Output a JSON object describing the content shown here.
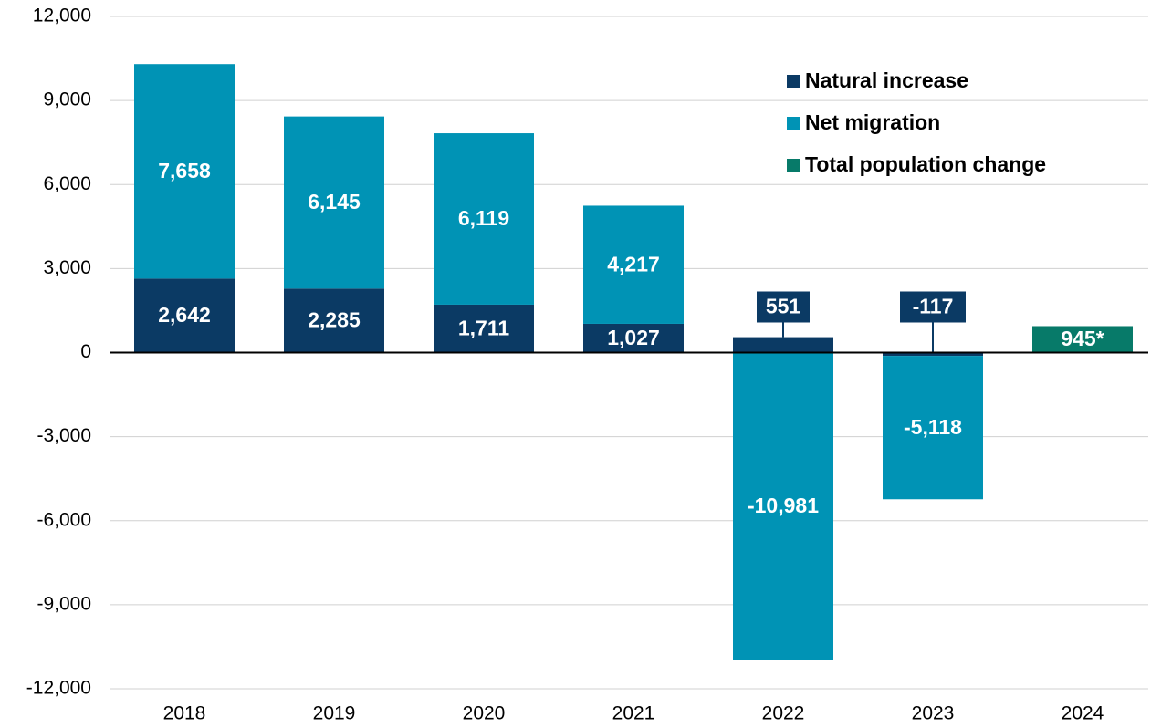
{
  "chart_data": {
    "type": "bar",
    "stacked": true,
    "categories": [
      "2018",
      "2019",
      "2020",
      "2021",
      "2022",
      "2023",
      "2024"
    ],
    "series": [
      {
        "name": "Natural increase",
        "color": "#0b3a64",
        "values": [
          2642,
          2285,
          1711,
          1027,
          551,
          -117,
          null
        ],
        "value_labels": [
          "2,642",
          "2,285",
          "1,711",
          "1,027",
          "551",
          "-117",
          null
        ]
      },
      {
        "name": "Net migration",
        "color": "#0093b5",
        "values": [
          7658,
          6145,
          6119,
          4217,
          -10981,
          -5118,
          null
        ],
        "value_labels": [
          "7,658",
          "6,145",
          "6,119",
          "4,217",
          "-10,981",
          "-5,118",
          null
        ]
      },
      {
        "name": "Total population change",
        "color": "#077a69",
        "values": [
          null,
          null,
          null,
          null,
          null,
          null,
          945
        ],
        "value_labels": [
          null,
          null,
          null,
          null,
          null,
          null,
          "945*"
        ]
      }
    ],
    "ylim": [
      -12000,
      12000
    ],
    "yticks": [
      {
        "value": -12000,
        "label": "-12,000"
      },
      {
        "value": -9000,
        "label": "-9,000"
      },
      {
        "value": -6000,
        "label": "-6,000"
      },
      {
        "value": -3000,
        "label": "-3,000"
      },
      0,
      {
        "value": 3000,
        "label": "3,000"
      },
      {
        "value": 6000,
        "label": "6,000"
      },
      {
        "value": 9000,
        "label": "9,000"
      },
      {
        "value": 12000,
        "label": "12,000"
      }
    ],
    "grid": true,
    "legend": "top-right"
  }
}
